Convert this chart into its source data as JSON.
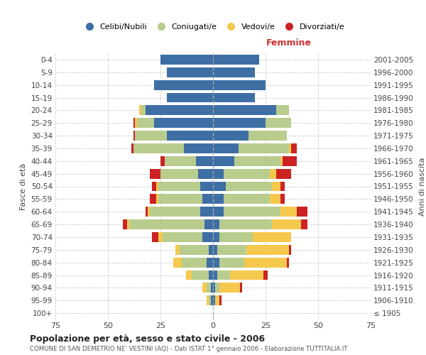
{
  "age_groups": [
    "100+",
    "95-99",
    "90-94",
    "85-89",
    "80-84",
    "75-79",
    "70-74",
    "65-69",
    "60-64",
    "55-59",
    "50-54",
    "45-49",
    "40-44",
    "35-39",
    "30-34",
    "25-29",
    "20-24",
    "15-19",
    "10-14",
    "5-9",
    "0-4"
  ],
  "birth_years": [
    "≤ 1905",
    "1906-1910",
    "1911-1915",
    "1916-1920",
    "1921-1925",
    "1926-1930",
    "1931-1935",
    "1936-1940",
    "1941-1945",
    "1946-1950",
    "1951-1955",
    "1956-1960",
    "1961-1965",
    "1966-1970",
    "1971-1975",
    "1976-1980",
    "1981-1985",
    "1986-1990",
    "1991-1995",
    "1996-2000",
    "2001-2005"
  ],
  "males": {
    "celibi": [
      0,
      1,
      1,
      2,
      3,
      2,
      5,
      4,
      6,
      5,
      6,
      7,
      8,
      14,
      22,
      28,
      32,
      22,
      28,
      22,
      25
    ],
    "coniugati": [
      0,
      1,
      2,
      8,
      12,
      14,
      19,
      36,
      24,
      21,
      20,
      18,
      15,
      24,
      15,
      8,
      2,
      0,
      0,
      0,
      0
    ],
    "vedovi": [
      0,
      1,
      2,
      3,
      4,
      2,
      2,
      1,
      1,
      1,
      1,
      0,
      0,
      0,
      0,
      1,
      1,
      0,
      0,
      0,
      0
    ],
    "divorziati": [
      0,
      0,
      0,
      0,
      0,
      0,
      3,
      2,
      1,
      3,
      2,
      5,
      2,
      1,
      1,
      1,
      0,
      0,
      0,
      0,
      0
    ]
  },
  "females": {
    "nubili": [
      0,
      1,
      1,
      2,
      3,
      2,
      3,
      3,
      5,
      5,
      6,
      5,
      10,
      12,
      17,
      25,
      30,
      20,
      25,
      20,
      22
    ],
    "coniugate": [
      0,
      0,
      2,
      6,
      12,
      14,
      16,
      25,
      27,
      22,
      22,
      22,
      22,
      24,
      18,
      12,
      6,
      0,
      0,
      0,
      0
    ],
    "vedove": [
      0,
      2,
      10,
      16,
      20,
      20,
      18,
      14,
      8,
      5,
      4,
      3,
      1,
      1,
      0,
      0,
      0,
      0,
      0,
      0,
      0
    ],
    "divorziate": [
      0,
      1,
      1,
      2,
      1,
      1,
      0,
      3,
      5,
      2,
      2,
      7,
      7,
      3,
      0,
      0,
      0,
      0,
      0,
      0,
      0
    ]
  },
  "colors": {
    "celibi": "#3d6fa5",
    "coniugati": "#b8cc8e",
    "vedovi": "#f5c94e",
    "divorziati": "#cc2222"
  },
  "title": "Popolazione per età, sesso e stato civile - 2006",
  "subtitle": "COMUNE DI SAN DEMETRIO NE' VESTINI (AQ) - Dati ISTAT 1° gennaio 2006 - Elaborazione TUTTITALIA.IT",
  "xlabel_right": "Femmine",
  "ylabel_left": "Fasce di età",
  "ylabel_right": "Anni di nascita",
  "xlim": 75,
  "legend_labels": [
    "Celibi/Nubili",
    "Coniugati/e",
    "Vedovi/e",
    "Divorziati/e"
  ],
  "bg_color": "#ffffff",
  "grid_color": "#cccccc"
}
